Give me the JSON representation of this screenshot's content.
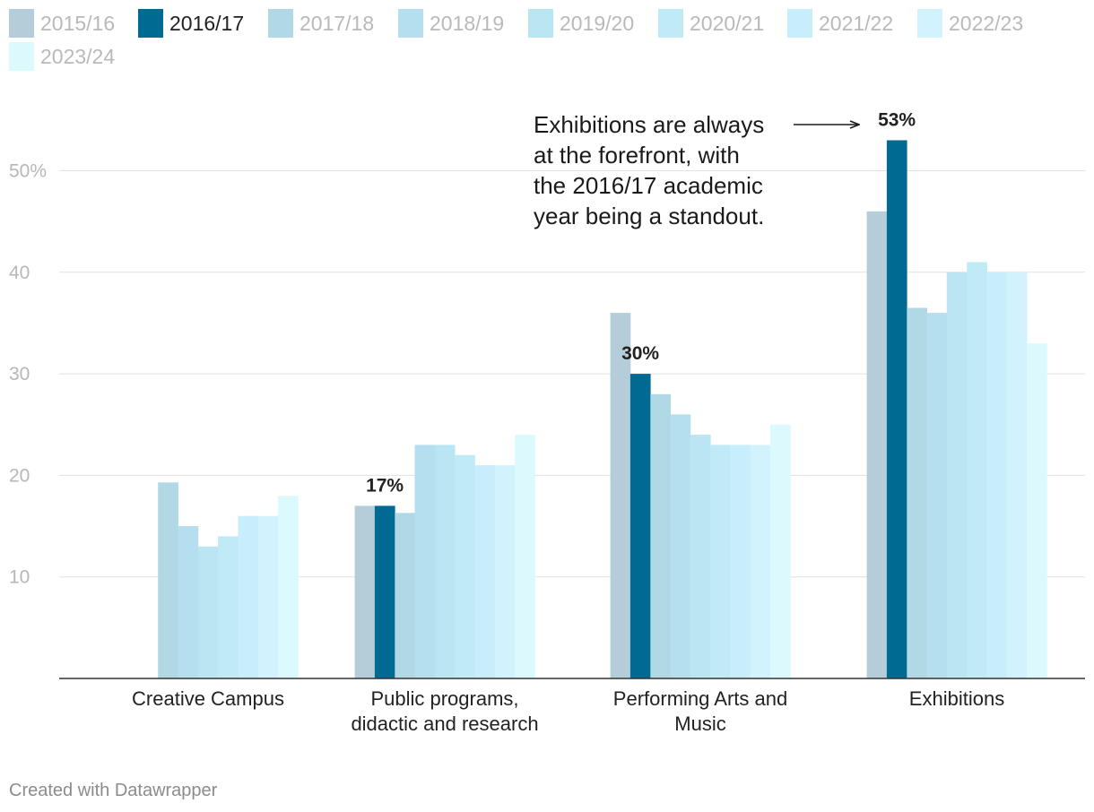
{
  "chart_data": {
    "type": "bar",
    "categories": [
      [
        "Creative Campus"
      ],
      [
        "Public programs,",
        "didactic and research"
      ],
      [
        "Performing Arts and",
        "Music"
      ],
      [
        "Exhibitions"
      ]
    ],
    "series": [
      {
        "name": "2015/16",
        "color": "#b5cdd8",
        "values": [
          null,
          17,
          36,
          46
        ]
      },
      {
        "name": "2016/17",
        "color": "#006a93",
        "values": [
          null,
          17,
          30,
          53
        ]
      },
      {
        "name": "2017/18",
        "color": "#b0d8e5",
        "values": [
          19.3,
          16.3,
          28,
          36.5
        ]
      },
      {
        "name": "2018/19",
        "color": "#b5dfee",
        "values": [
          15,
          23,
          26,
          36
        ]
      },
      {
        "name": "2019/20",
        "color": "#bae6f3",
        "values": [
          13,
          23,
          24,
          40
        ]
      },
      {
        "name": "2020/21",
        "color": "#c1eaf7",
        "values": [
          14,
          22,
          23,
          41
        ]
      },
      {
        "name": "2021/22",
        "color": "#c9eefb",
        "values": [
          16,
          21,
          23,
          40
        ]
      },
      {
        "name": "2022/23",
        "color": "#d2f3fd",
        "values": [
          16,
          21,
          23,
          40
        ]
      },
      {
        "name": "2023/24",
        "color": "#dcf9fe",
        "values": [
          18,
          24,
          25,
          33
        ]
      }
    ],
    "highlight_series": "2016/17",
    "data_labels": [
      "",
      "17%",
      "30%",
      "53%"
    ],
    "yticks": [
      {
        "value": 10,
        "label": "10"
      },
      {
        "value": 20,
        "label": "20"
      },
      {
        "value": 30,
        "label": "30"
      },
      {
        "value": 40,
        "label": "40"
      },
      {
        "value": 50,
        "label": "50%"
      }
    ],
    "ylim": [
      0,
      59
    ],
    "annotation": {
      "lines": [
        "Exhibitions are always",
        "at the forefront, with",
        "the 2016/17 academic",
        "year being a standout."
      ],
      "target_category": 3,
      "target_series": "2016/17"
    },
    "legend_position": "top-left",
    "grid": true,
    "title": "",
    "xlabel": "",
    "ylabel": ""
  },
  "legend": {
    "active_text_color": "#222222",
    "inactive_text_color": "#b9b9b9"
  },
  "footer": {
    "credit": "Created with Datawrapper"
  }
}
